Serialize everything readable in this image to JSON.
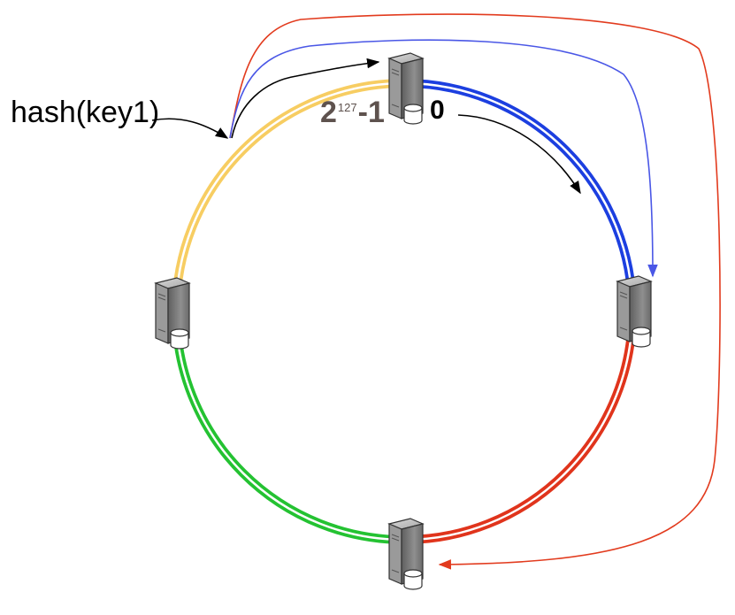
{
  "labels": {
    "hash_key": "hash(key1)",
    "ring_max_base": "2",
    "ring_max_exponent": "127",
    "ring_max_suffix": "-1",
    "ring_zero": "0"
  },
  "ring": {
    "arcs": [
      {
        "name": "arc-top-right",
        "color": "#1c3fe0"
      },
      {
        "name": "arc-right-bottom",
        "color": "#e0341c"
      },
      {
        "name": "arc-bottom-left",
        "color": "#24c232"
      },
      {
        "name": "arc-left-top",
        "color": "#f7cd62"
      }
    ]
  },
  "nodes": [
    {
      "name": "server-top-icon"
    },
    {
      "name": "server-right-icon"
    },
    {
      "name": "server-bottom-icon"
    },
    {
      "name": "server-left-icon"
    }
  ],
  "colors": {
    "arrow_direct": "#000000",
    "arrow_skip_one": "#4a57e6",
    "arrow_skip_two": "#e23b1e",
    "server_body": "#8c8c8c"
  }
}
